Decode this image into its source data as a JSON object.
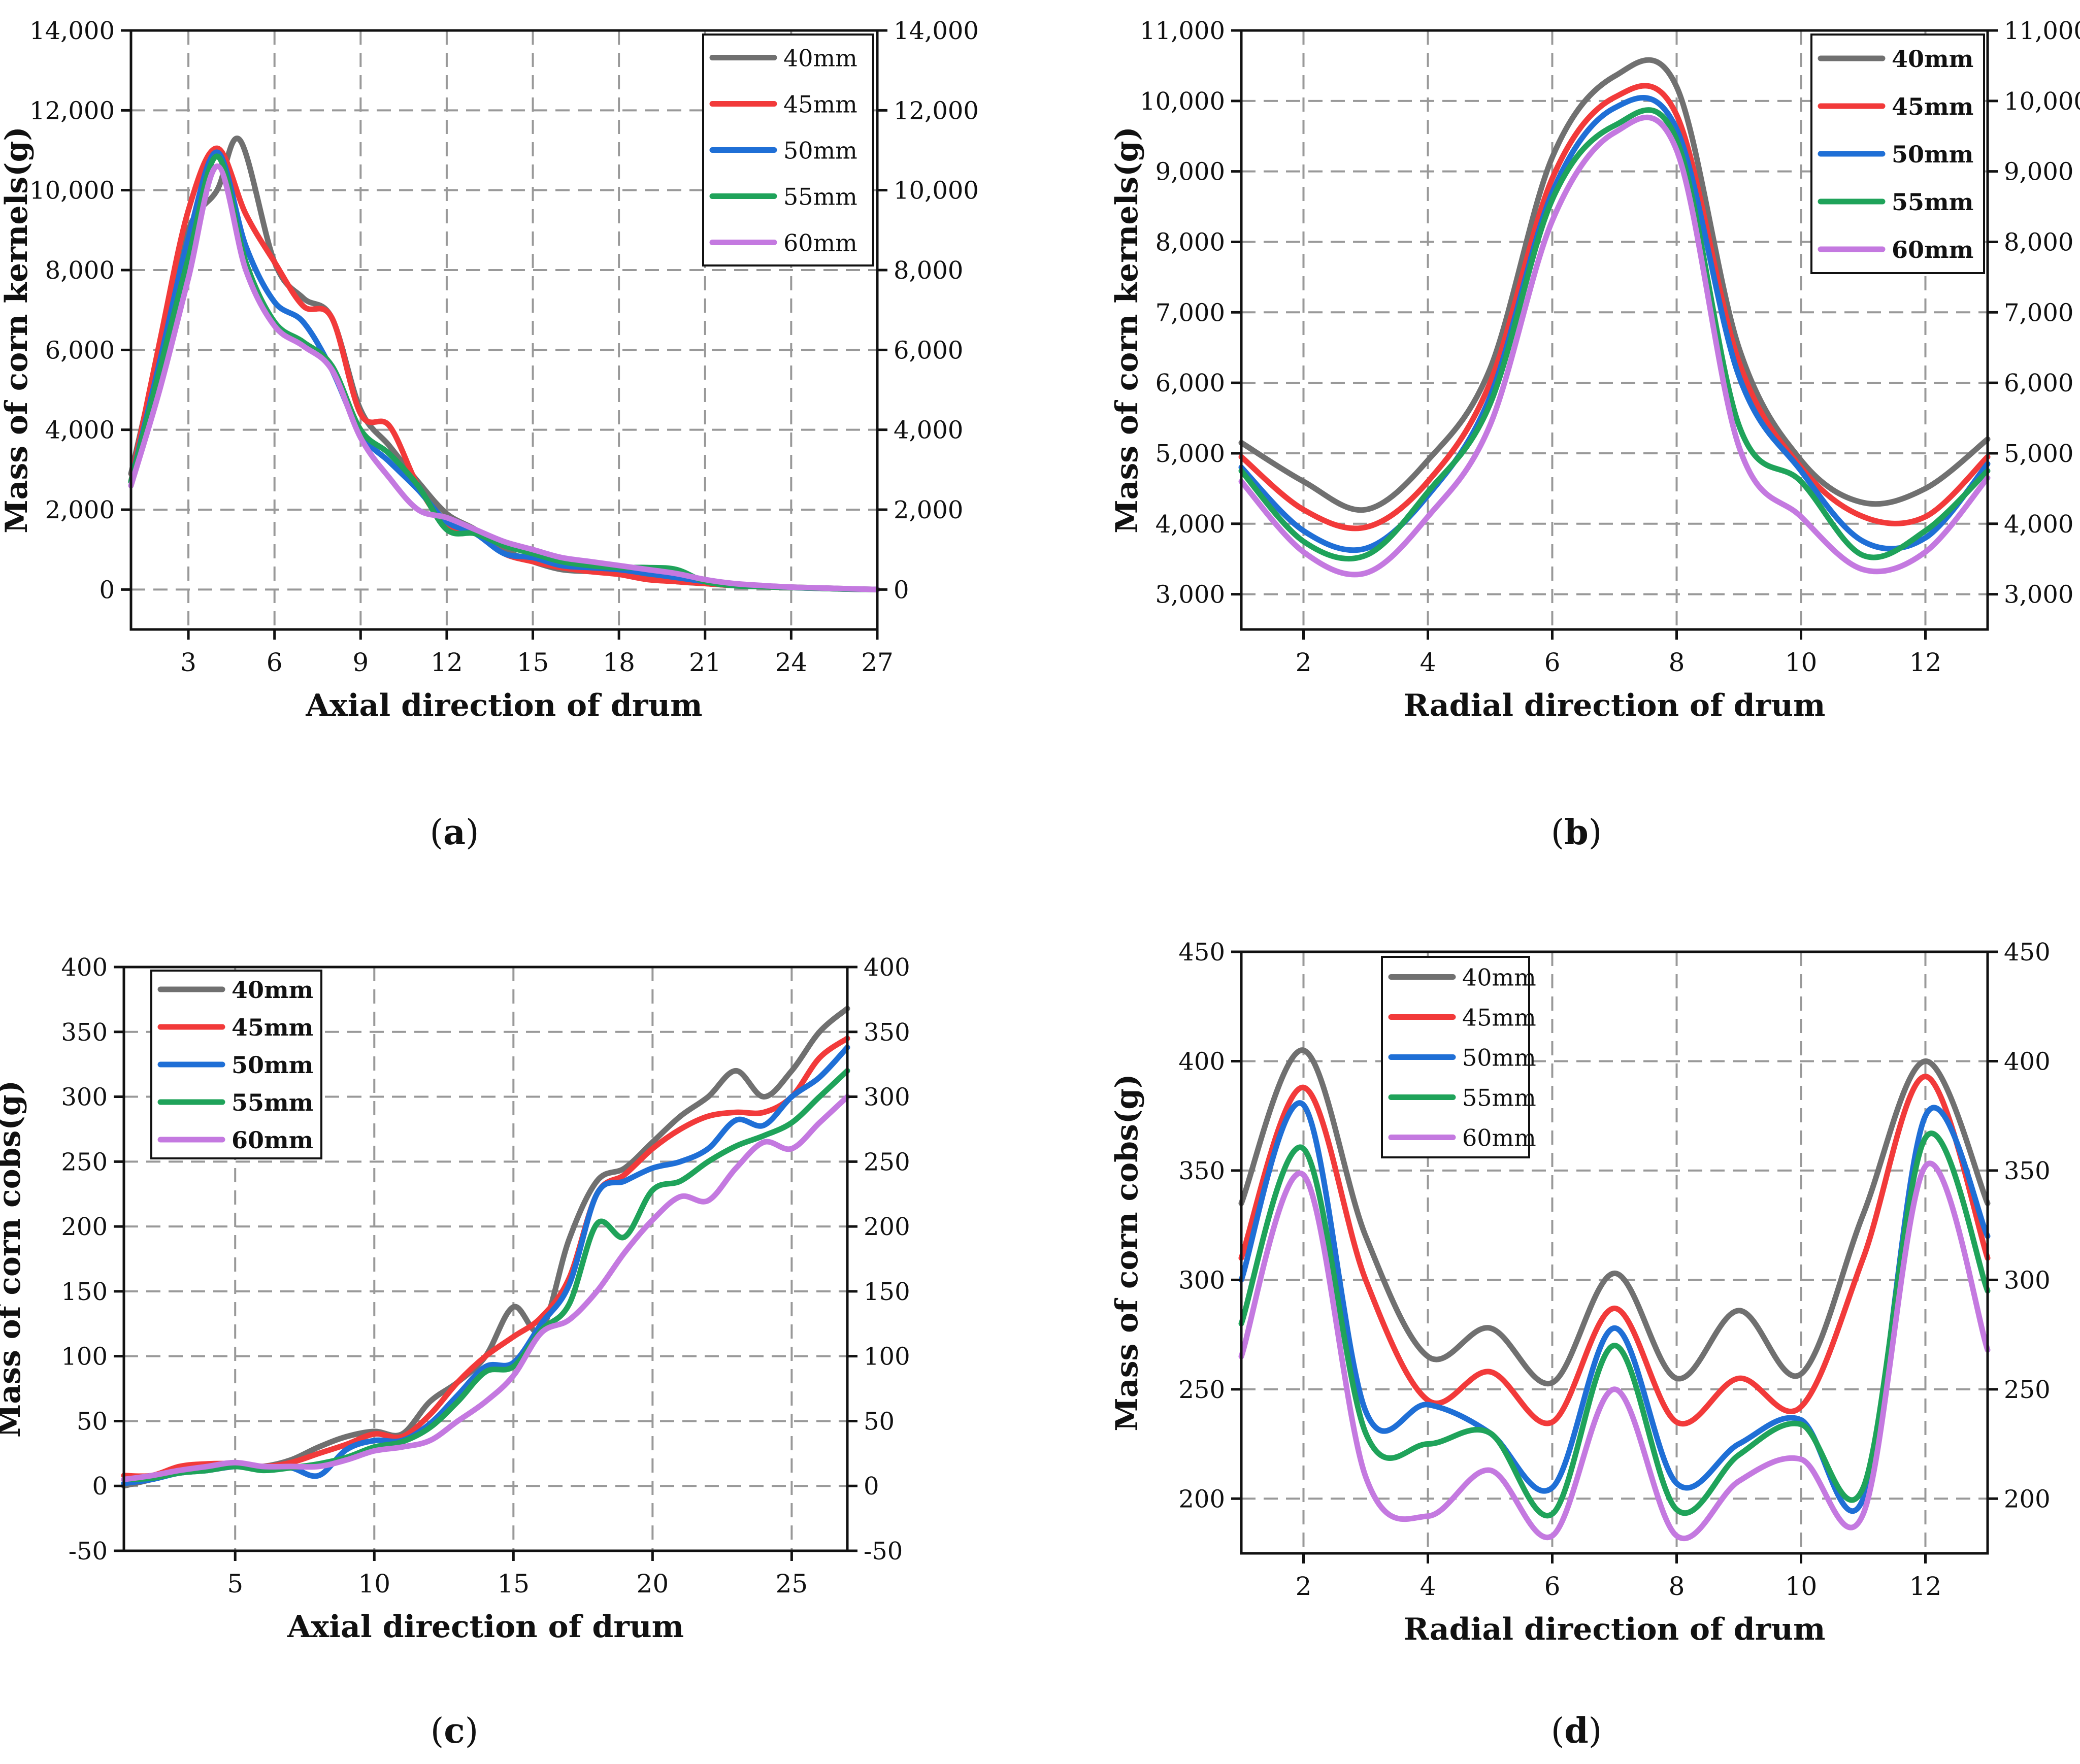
{
  "colors": {
    "40mm": "#707070",
    "45mm": "#f23a3a",
    "50mm": "#1f6fd6",
    "55mm": "#1fa35a",
    "60mm": "#c479e0",
    "grid": "#999999",
    "axis": "#111111"
  },
  "panel_labels": [
    {
      "open": "(",
      "letter": "a",
      "close": ")"
    },
    {
      "open": "(",
      "letter": "b",
      "close": ")"
    },
    {
      "open": "(",
      "letter": "c",
      "close": ")"
    },
    {
      "open": "(",
      "letter": "d",
      "close": ")"
    }
  ],
  "chart_data": [
    {
      "id": "a",
      "type": "line",
      "xlabel": "Axial direction of drum",
      "ylabel": "Mass of corn kernels(g)",
      "xlim": [
        1,
        27
      ],
      "ylim": [
        -1000,
        14000
      ],
      "xticks": [
        3,
        6,
        9,
        12,
        15,
        18,
        21,
        24,
        27
      ],
      "xtick_labels": [
        "3",
        "6",
        "9",
        "12",
        "15",
        "18",
        "21",
        "24",
        "27"
      ],
      "yticks": [
        0,
        2000,
        4000,
        6000,
        8000,
        10000,
        12000,
        14000
      ],
      "ytick_labels": [
        "0",
        "2,000",
        "4,000",
        "6,000",
        "8,000",
        "10,000",
        "12,000",
        "14,000"
      ],
      "legend": {
        "position": "top-right",
        "labels": [
          "40mm",
          "45mm",
          "50mm",
          "55mm",
          "60mm"
        ]
      },
      "series": [
        {
          "name": "40mm",
          "x": [
            1,
            2,
            3,
            4,
            4.8,
            6,
            7,
            8,
            9,
            10,
            11,
            12,
            13,
            14,
            15,
            16,
            17,
            18,
            19,
            20,
            21,
            22,
            23,
            24,
            25,
            26,
            27
          ],
          "values": [
            2900,
            6000,
            9000,
            10000,
            11250,
            8200,
            7300,
            6800,
            4500,
            3600,
            2700,
            1900,
            1500,
            1000,
            700,
            500,
            450,
            400,
            300,
            200,
            150,
            100,
            80,
            60,
            40,
            20,
            0
          ]
        },
        {
          "name": "45mm",
          "x": [
            1,
            2,
            3,
            4,
            5,
            6,
            7,
            8,
            9,
            10,
            11,
            12,
            13,
            14,
            15,
            16,
            17,
            18,
            19,
            20,
            21,
            22,
            23,
            24,
            25,
            26,
            27
          ],
          "values": [
            2700,
            6200,
            9500,
            11050,
            9400,
            8200,
            7100,
            6800,
            4400,
            4100,
            2600,
            1600,
            1400,
            900,
            700,
            550,
            450,
            380,
            250,
            200,
            150,
            100,
            70,
            50,
            30,
            10,
            0
          ]
        },
        {
          "name": "50mm",
          "x": [
            1,
            2,
            3,
            4,
            5,
            6,
            7,
            8,
            9,
            10,
            11,
            12,
            13,
            14,
            15,
            16,
            17,
            18,
            19,
            20,
            21,
            22,
            23,
            24,
            25,
            26,
            27
          ],
          "values": [
            2700,
            5700,
            8800,
            10950,
            8600,
            7200,
            6700,
            5500,
            3900,
            3200,
            2500,
            1700,
            1400,
            900,
            800,
            600,
            550,
            500,
            400,
            300,
            200,
            100,
            80,
            50,
            30,
            10,
            0
          ]
        },
        {
          "name": "55mm",
          "x": [
            1,
            2,
            3,
            4,
            5,
            6,
            7,
            8,
            9,
            10,
            11,
            12,
            13,
            14,
            15,
            16,
            17,
            18,
            19,
            20,
            21,
            22,
            23,
            24,
            25,
            26,
            27
          ],
          "values": [
            2700,
            5500,
            8300,
            10850,
            8200,
            6700,
            6200,
            5600,
            4000,
            3400,
            2600,
            1500,
            1400,
            1100,
            900,
            700,
            600,
            550,
            550,
            500,
            200,
            100,
            70,
            50,
            30,
            10,
            0
          ]
        },
        {
          "name": "60mm",
          "x": [
            1,
            2,
            3,
            4,
            5,
            6,
            7,
            8,
            9,
            10,
            11,
            12,
            13,
            14,
            15,
            16,
            17,
            18,
            19,
            20,
            21,
            22,
            23,
            24,
            25,
            26,
            27
          ],
          "values": [
            2600,
            5000,
            7800,
            10600,
            8000,
            6600,
            6100,
            5500,
            3800,
            2800,
            2000,
            1800,
            1500,
            1200,
            1000,
            800,
            700,
            600,
            500,
            400,
            250,
            150,
            100,
            60,
            40,
            20,
            0
          ]
        }
      ]
    },
    {
      "id": "b",
      "type": "line",
      "xlabel": "Radial direction of drum",
      "ylabel": "Mass of corn kernels(g)",
      "xlim": [
        1,
        13
      ],
      "ylim": [
        2500,
        11000
      ],
      "xticks": [
        2,
        4,
        6,
        8,
        10,
        12
      ],
      "xtick_labels": [
        "2",
        "4",
        "6",
        "8",
        "10",
        "12"
      ],
      "yticks": [
        3000,
        4000,
        5000,
        6000,
        7000,
        8000,
        9000,
        10000,
        11000
      ],
      "ytick_labels": [
        "3,000",
        "4,000",
        "5,000",
        "6,000",
        "7,000",
        "8,000",
        "9,000",
        "10,000",
        "11,000"
      ],
      "legend": {
        "position": "top-right",
        "labels": [
          "40mm",
          "45mm",
          "50mm",
          "55mm",
          "60mm"
        ]
      },
      "series": [
        {
          "name": "40mm",
          "x": [
            1,
            2,
            3,
            4,
            5,
            6,
            7,
            8,
            9,
            10,
            11,
            12,
            13
          ],
          "values": [
            5150,
            4600,
            4200,
            4900,
            6200,
            9200,
            10350,
            10200,
            6500,
            4900,
            4300,
            4500,
            5200
          ]
        },
        {
          "name": "45mm",
          "x": [
            1,
            2,
            3,
            4,
            5,
            6,
            7,
            8,
            9,
            10,
            11,
            12,
            13
          ],
          "values": [
            4950,
            4200,
            3950,
            4600,
            6000,
            8900,
            10050,
            9800,
            6300,
            4800,
            4100,
            4100,
            4950
          ]
        },
        {
          "name": "50mm",
          "x": [
            1,
            2,
            3,
            4,
            5,
            6,
            7,
            8,
            9,
            10,
            11,
            12,
            13
          ],
          "values": [
            4800,
            3900,
            3650,
            4400,
            5800,
            8700,
            9900,
            9600,
            6100,
            4750,
            3750,
            3800,
            4850
          ]
        },
        {
          "name": "55mm",
          "x": [
            1,
            2,
            3,
            4,
            5,
            6,
            7,
            8,
            9,
            10,
            11,
            12,
            13
          ],
          "values": [
            4750,
            3750,
            3550,
            4450,
            5700,
            8600,
            9650,
            9450,
            5400,
            4600,
            3550,
            3900,
            4750
          ]
        },
        {
          "name": "60mm",
          "x": [
            1,
            2,
            3,
            4,
            5,
            6,
            7,
            8,
            9,
            10,
            11,
            12,
            13
          ],
          "values": [
            4600,
            3600,
            3300,
            4100,
            5400,
            8300,
            9550,
            9300,
            5100,
            4100,
            3350,
            3600,
            4650
          ]
        }
      ]
    },
    {
      "id": "c",
      "type": "line",
      "xlabel": "Axial direction of drum",
      "ylabel": "Mass of corn cobs(g)",
      "xlim": [
        1,
        27
      ],
      "ylim": [
        -50,
        400
      ],
      "xticks": [
        5,
        10,
        15,
        20,
        25
      ],
      "xtick_labels": [
        "5",
        "10",
        "15",
        "20",
        "25"
      ],
      "yticks": [
        -50,
        0,
        50,
        100,
        150,
        200,
        250,
        300,
        350,
        400
      ],
      "ytick_labels": [
        "-50",
        "0",
        "50",
        "100",
        "150",
        "200",
        "250",
        "300",
        "350",
        "400"
      ],
      "legend": {
        "position": "top-left",
        "labels": [
          "40mm",
          "45mm",
          "50mm",
          "55mm",
          "60mm"
        ]
      },
      "series": [
        {
          "name": "40mm",
          "x": [
            1,
            2,
            3,
            4,
            5,
            6,
            7,
            8,
            9,
            10,
            11,
            12,
            13,
            14,
            15,
            16,
            17,
            18,
            19,
            20,
            21,
            22,
            23,
            24,
            25,
            26,
            27
          ],
          "values": [
            0,
            5,
            10,
            12,
            15,
            15,
            20,
            30,
            38,
            42,
            40,
            65,
            80,
            100,
            138,
            120,
            190,
            235,
            245,
            265,
            285,
            300,
            320,
            300,
            320,
            350,
            368
          ]
        },
        {
          "name": "45mm",
          "x": [
            1,
            2,
            3,
            4,
            5,
            6,
            7,
            8,
            9,
            10,
            11,
            12,
            13,
            14,
            15,
            16,
            17,
            18,
            19,
            20,
            21,
            22,
            23,
            24,
            25,
            26,
            27
          ],
          "values": [
            8,
            8,
            15,
            17,
            17,
            15,
            18,
            25,
            32,
            40,
            38,
            55,
            80,
            100,
            115,
            130,
            160,
            225,
            240,
            260,
            275,
            285,
            288,
            288,
            300,
            330,
            345
          ]
        },
        {
          "name": "50mm",
          "x": [
            1,
            2,
            3,
            4,
            5,
            6,
            7,
            8,
            9,
            10,
            11,
            12,
            13,
            14,
            15,
            16,
            17,
            18,
            19,
            20,
            21,
            22,
            23,
            24,
            25,
            26,
            27
          ],
          "values": [
            2,
            5,
            10,
            12,
            15,
            14,
            14,
            8,
            28,
            35,
            35,
            48,
            70,
            92,
            95,
            125,
            155,
            225,
            235,
            245,
            250,
            260,
            282,
            278,
            300,
            315,
            338
          ]
        },
        {
          "name": "55mm",
          "x": [
            1,
            2,
            3,
            4,
            5,
            6,
            7,
            8,
            9,
            10,
            11,
            12,
            13,
            14,
            15,
            16,
            17,
            18,
            19,
            20,
            21,
            22,
            23,
            24,
            25,
            26,
            27
          ],
          "values": [
            5,
            6,
            10,
            12,
            15,
            12,
            14,
            17,
            22,
            30,
            34,
            45,
            65,
            88,
            92,
            120,
            140,
            202,
            192,
            228,
            235,
            250,
            262,
            270,
            280,
            300,
            320
          ]
        },
        {
          "name": "60mm",
          "x": [
            1,
            2,
            3,
            4,
            5,
            6,
            7,
            8,
            9,
            10,
            11,
            12,
            13,
            14,
            15,
            16,
            17,
            18,
            19,
            20,
            21,
            22,
            23,
            24,
            25,
            26,
            27
          ],
          "values": [
            5,
            8,
            12,
            15,
            18,
            15,
            15,
            15,
            20,
            27,
            30,
            35,
            50,
            65,
            85,
            118,
            128,
            150,
            180,
            205,
            223,
            220,
            245,
            265,
            260,
            280,
            300
          ]
        }
      ]
    },
    {
      "id": "d",
      "type": "line",
      "xlabel": "Radial direction of drum",
      "ylabel": "Mass of corn cobs(g)",
      "xlim": [
        1,
        13
      ],
      "ylim": [
        175,
        450
      ],
      "xticks": [
        2,
        4,
        6,
        8,
        10,
        12
      ],
      "xtick_labels": [
        "2",
        "4",
        "6",
        "8",
        "10",
        "12"
      ],
      "yticks": [
        200,
        250,
        300,
        350,
        400,
        450
      ],
      "ytick_labels": [
        "200",
        "250",
        "300",
        "350",
        "400",
        "450"
      ],
      "legend": {
        "position": "top-center",
        "labels": [
          "40mm",
          "45mm",
          "50mm",
          "55mm",
          "60mm"
        ]
      },
      "series": [
        {
          "name": "40mm",
          "x": [
            1,
            2,
            3,
            4,
            5,
            6,
            7,
            8,
            9,
            10,
            11,
            12,
            13
          ],
          "values": [
            335,
            405,
            320,
            265,
            278,
            253,
            303,
            255,
            286,
            257,
            330,
            400,
            335
          ]
        },
        {
          "name": "45mm",
          "x": [
            1,
            2,
            3,
            4,
            5,
            6,
            7,
            8,
            9,
            10,
            11,
            12,
            13
          ],
          "values": [
            310,
            388,
            300,
            245,
            258,
            235,
            287,
            235,
            255,
            242,
            310,
            393,
            310
          ]
        },
        {
          "name": "50mm",
          "x": [
            1,
            2,
            3,
            4,
            5,
            6,
            7,
            8,
            9,
            10,
            11,
            12,
            13
          ],
          "values": [
            300,
            380,
            240,
            243,
            230,
            205,
            278,
            207,
            225,
            236,
            200,
            375,
            320
          ]
        },
        {
          "name": "55mm",
          "x": [
            1,
            2,
            3,
            4,
            5,
            6,
            7,
            8,
            9,
            10,
            11,
            12,
            13
          ],
          "values": [
            280,
            360,
            230,
            225,
            230,
            193,
            270,
            195,
            220,
            234,
            205,
            365,
            295
          ]
        },
        {
          "name": "60mm",
          "x": [
            1,
            2,
            3,
            4,
            5,
            6,
            7,
            8,
            9,
            10,
            11,
            12,
            13
          ],
          "values": [
            265,
            348,
            210,
            192,
            213,
            183,
            250,
            183,
            208,
            218,
            193,
            352,
            268
          ]
        }
      ]
    }
  ]
}
